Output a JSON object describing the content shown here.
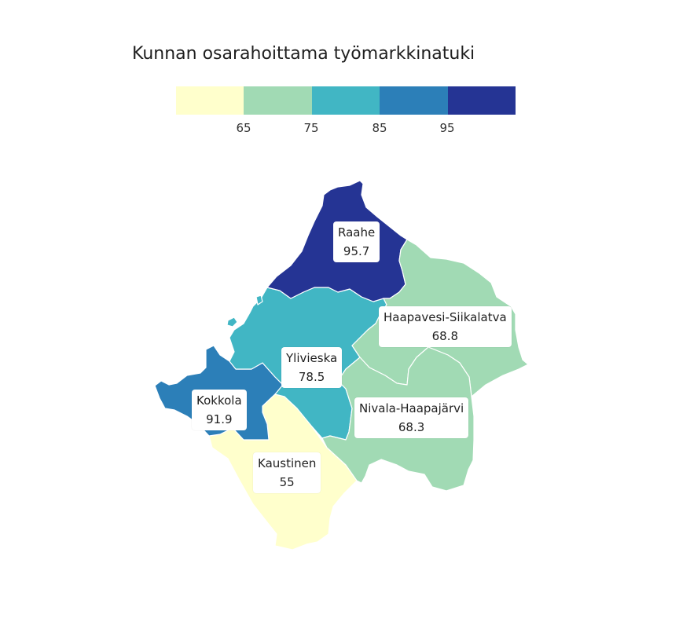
{
  "title": "Kunnan osarahoittama työmarkkinatuki",
  "legend": {
    "colors": [
      "#ffffcc",
      "#a1dab4",
      "#41b6c4",
      "#2c7fb8",
      "#253494"
    ],
    "ticks": [
      "65",
      "75",
      "85",
      "95"
    ]
  },
  "regions": [
    {
      "name": "Raahe",
      "value": "95.7",
      "color": "#253494"
    },
    {
      "name": "Haapavesi-Siikalatva",
      "value": "68.8",
      "color": "#a1dab4"
    },
    {
      "name": "Ylivieska",
      "value": "78.5",
      "color": "#41b6c4"
    },
    {
      "name": "Kokkola",
      "value": "91.9",
      "color": "#2c7fb8"
    },
    {
      "name": "Nivala-Haapajärvi",
      "value": "68.3",
      "color": "#a1dab4"
    },
    {
      "name": "Kaustinen",
      "value": "55",
      "color": "#ffffcc"
    }
  ]
}
